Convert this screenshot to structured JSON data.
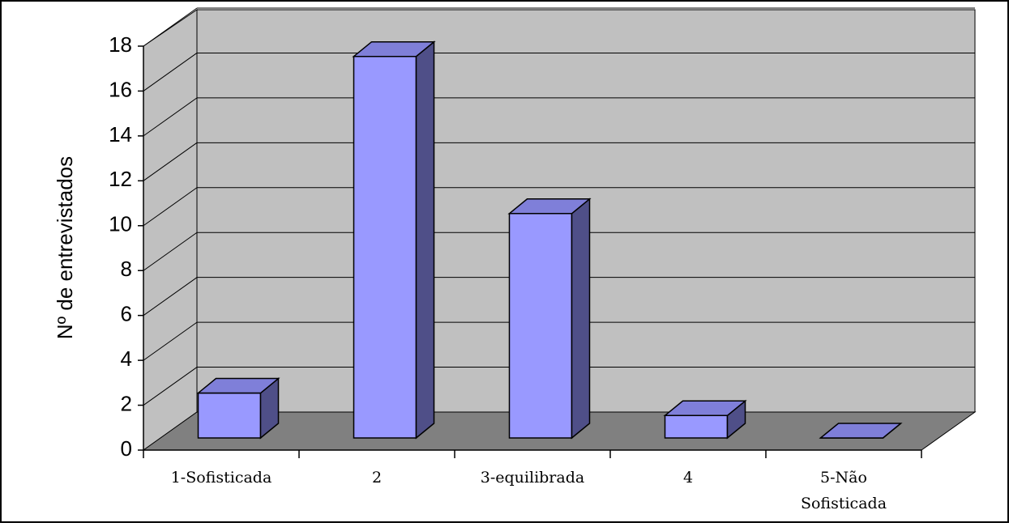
{
  "chart_data": {
    "type": "bar",
    "categories": [
      "1-Sofisticada",
      "2",
      "3-equilibrada",
      "4",
      "5-Não Sofisticada"
    ],
    "category_lines": [
      [
        "1-Sofisticada"
      ],
      [
        "2"
      ],
      [
        "3-equilibrada"
      ],
      [
        "4"
      ],
      [
        "5-Não",
        "Sofisticada"
      ]
    ],
    "values": [
      2,
      17,
      10,
      1,
      0
    ],
    "ylabel": "Nº de entrevistados",
    "xlabel": "",
    "ylim": [
      0,
      18
    ],
    "yticks": [
      "0",
      "2",
      "4",
      "6",
      "8",
      "10",
      "12",
      "14",
      "16",
      "18"
    ],
    "grid": true,
    "three_d": true,
    "colors": {
      "bar_front": "#9999ff",
      "bar_top": "#7f7fd9",
      "bar_side": "#4f4f88",
      "wall": "#c0c0c0",
      "floor": "#808080",
      "border": "#000000"
    }
  }
}
